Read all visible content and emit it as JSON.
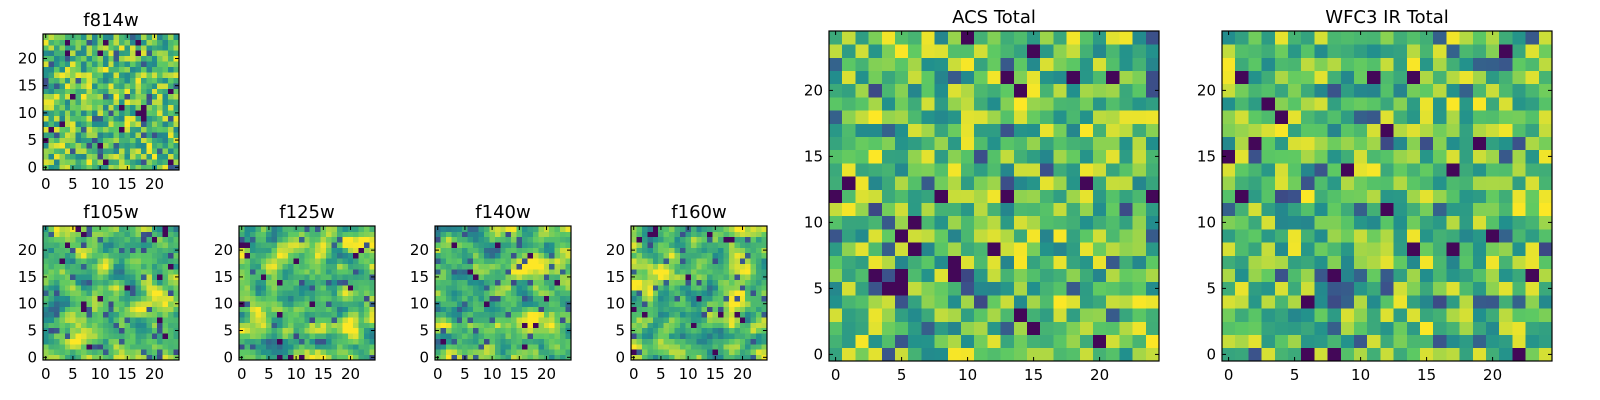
{
  "figure": {
    "colormap": "viridis",
    "colors": [
      "#440154",
      "#3b528b",
      "#21908d",
      "#5dc963",
      "#fde725"
    ],
    "grid": false,
    "legend": "none"
  },
  "chart_data": [
    {
      "id": "f814w",
      "type": "heatmap",
      "title": "f814w",
      "size": 25,
      "xlim": [
        -0.5,
        24.5
      ],
      "ylim": [
        -0.5,
        24.5
      ],
      "xticks": [
        0,
        5,
        10,
        15,
        20
      ],
      "yticks": [
        0,
        5,
        10,
        15,
        20
      ],
      "xtick_labels": [
        "0",
        "5",
        "10",
        "15",
        "20"
      ],
      "ytick_labels": [
        "0",
        "5",
        "10",
        "15",
        "20"
      ],
      "seed": 814,
      "smooth": 0
    },
    {
      "id": "f105w",
      "type": "heatmap",
      "title": "f105w",
      "size": 25,
      "xlim": [
        -0.5,
        24.5
      ],
      "ylim": [
        -0.5,
        24.5
      ],
      "xticks": [
        0,
        5,
        10,
        15,
        20
      ],
      "yticks": [
        0,
        5,
        10,
        15,
        20
      ],
      "xtick_labels": [
        "0",
        "5",
        "10",
        "15",
        "20"
      ],
      "ytick_labels": [
        "0",
        "5",
        "10",
        "15",
        "20"
      ],
      "seed": 105,
      "smooth": 1
    },
    {
      "id": "f125w",
      "type": "heatmap",
      "title": "f125w",
      "size": 25,
      "xlim": [
        -0.5,
        24.5
      ],
      "ylim": [
        -0.5,
        24.5
      ],
      "xticks": [
        0,
        5,
        10,
        15,
        20
      ],
      "yticks": [
        0,
        5,
        10,
        15,
        20
      ],
      "xtick_labels": [
        "0",
        "5",
        "10",
        "15",
        "20"
      ],
      "ytick_labels": [
        "0",
        "5",
        "10",
        "15",
        "20"
      ],
      "seed": 125,
      "smooth": 1
    },
    {
      "id": "f140w",
      "type": "heatmap",
      "title": "f140w",
      "size": 25,
      "xlim": [
        -0.5,
        24.5
      ],
      "ylim": [
        -0.5,
        24.5
      ],
      "xticks": [
        0,
        5,
        10,
        15,
        20
      ],
      "yticks": [
        0,
        5,
        10,
        15,
        20
      ],
      "xtick_labels": [
        "0",
        "5",
        "10",
        "15",
        "20"
      ],
      "ytick_labels": [
        "0",
        "5",
        "10",
        "15",
        "20"
      ],
      "seed": 140,
      "smooth": 1
    },
    {
      "id": "f160w",
      "type": "heatmap",
      "title": "f160w",
      "size": 25,
      "xlim": [
        -0.5,
        24.5
      ],
      "ylim": [
        -0.5,
        24.5
      ],
      "xticks": [
        0,
        5,
        10,
        15,
        20
      ],
      "yticks": [
        0,
        5,
        10,
        15,
        20
      ],
      "xtick_labels": [
        "0",
        "5",
        "10",
        "15",
        "20"
      ],
      "ytick_labels": [
        "0",
        "5",
        "10",
        "15",
        "20"
      ],
      "seed": 160,
      "smooth": 1
    },
    {
      "id": "acs-total",
      "type": "heatmap",
      "title": "ACS Total",
      "size": 25,
      "xlim": [
        -0.5,
        24.5
      ],
      "ylim": [
        -0.5,
        24.5
      ],
      "xticks": [
        0,
        5,
        10,
        15,
        20
      ],
      "yticks": [
        0,
        5,
        10,
        15,
        20
      ],
      "xtick_labels": [
        "0",
        "5",
        "10",
        "15",
        "20"
      ],
      "ytick_labels": [
        "0",
        "5",
        "10",
        "15",
        "20"
      ],
      "seed": 7,
      "smooth": 0
    },
    {
      "id": "wfc3-ir-total",
      "type": "heatmap",
      "title": "WFC3 IR Total",
      "size": 25,
      "xlim": [
        -0.5,
        24.5
      ],
      "ylim": [
        -0.5,
        24.5
      ],
      "xticks": [
        0,
        5,
        10,
        15,
        20
      ],
      "yticks": [
        0,
        5,
        10,
        15,
        20
      ],
      "xtick_labels": [
        "0",
        "5",
        "10",
        "15",
        "20"
      ],
      "ytick_labels": [
        "0",
        "5",
        "10",
        "15",
        "20"
      ],
      "seed": 33,
      "smooth": 0
    }
  ]
}
